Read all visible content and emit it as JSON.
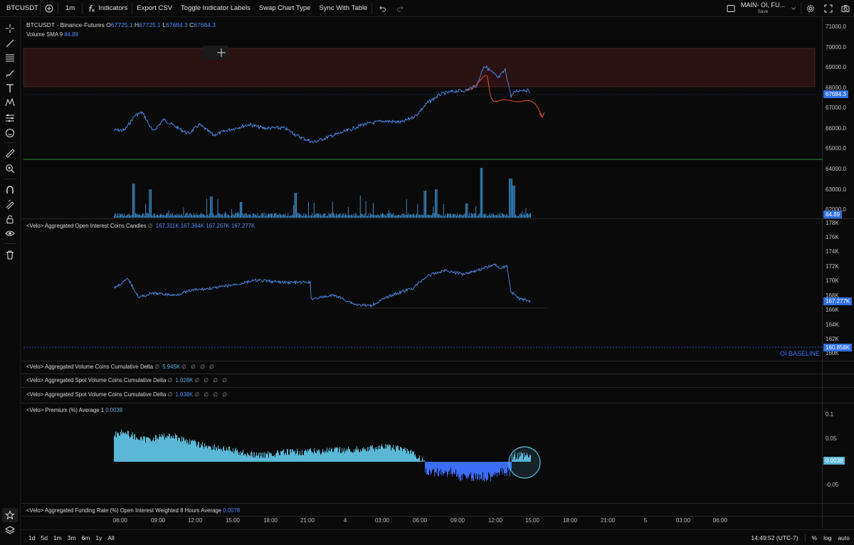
{
  "toolbar": {
    "symbol": "BTCUSDT",
    "interval": "1m",
    "indicators_label": "Indicators",
    "export_csv_label": "Export CSV",
    "toggle_labels_label": "Toggle Indicator Labels",
    "swap_chart_label": "Swap Chart Type",
    "sync_table_label": "Sync With Table",
    "layout_name": "MAIN- OI, FU...",
    "layout_save": "Save"
  },
  "main_legend": {
    "title": "BTCUSDT · Binance-Futures",
    "o_label": "O",
    "o": "67725.1",
    "h_label": "H",
    "h": "67725.1",
    "l_label": "L",
    "l": "67684.3",
    "c_label": "C",
    "c": "67684.3",
    "volume_label": "Volume SMA 9",
    "volume_value": "84.89"
  },
  "oi_legend": {
    "label": "<Velo> Aggregated Open Interest Coins Candles",
    "null_mark": "∅",
    "values": [
      "167.311K",
      "167.364K",
      "167.267K",
      "167.277K"
    ]
  },
  "delta_legends": [
    {
      "label": "<Velo> Aggregated Volume Coins Cumulative Delta",
      "null_mark": "∅",
      "value": "5.945K",
      "trailing": "∅ ∅ ∅ ∅"
    },
    {
      "label": "<Velo> Aggregated Spot Volume Coins Cumulative Delta",
      "null_mark": "∅",
      "value": "1.028K",
      "trailing": "∅ ∅ ∅ ∅"
    },
    {
      "label": "<Velo> Aggregated Spot Volume Coins Cumulative Delta",
      "null_mark": "∅",
      "value": "1.038K",
      "trailing": "∅ ∅ ∅ ∅"
    }
  ],
  "premium_legend": {
    "label": "<Velo> Premium (%) Average 1",
    "value": "0.0038"
  },
  "funding_legend": {
    "label": "<Velo> Aggregated Funding Rate (%) Open Interest Weighted 8 Hours Average",
    "value": "0.0078"
  },
  "oi_baseline_label": "OI BASELINE",
  "price_axis": {
    "price_ticks": [
      "71000.0",
      "70000.0",
      "69000.0",
      "68000.0",
      "67000.0",
      "66000.0",
      "65000.0",
      "64000.0",
      "63000.0",
      "62000.0"
    ],
    "price_tag": "67684.3",
    "volume_tag": "84.89",
    "oi_ticks": [
      "178K",
      "176K",
      "174K",
      "172K",
      "170K",
      "168K",
      "166K",
      "164K",
      "162K",
      "160K"
    ],
    "oi_tag": "167.277K",
    "oi_baseline_tag": "160.858K",
    "premium_ticks": [
      "0.1",
      "0.05",
      "-0.05"
    ],
    "premium_tag": "0.0038"
  },
  "time_axis": [
    "06:00",
    "09:00",
    "12:00",
    "15:00",
    "18:00",
    "21:00",
    "4",
    "03:00",
    "06:00",
    "09:00",
    "12:00",
    "15:00",
    "18:00",
    "21:00",
    "5",
    "03:00",
    "06:00"
  ],
  "bottom": {
    "ranges": [
      "1d",
      "5d",
      "1m",
      "3m",
      "6m",
      "1y",
      "All"
    ],
    "clock": "14:49:52 (UTC-7)",
    "percent": "%",
    "log": "log",
    "auto": "auto"
  },
  "colors": {
    "price_line": "#4c8ff0",
    "oi_line": "#4c8ff0",
    "zone_fill": "#2a1212",
    "premium_pos": "#5ab8d6",
    "premium_neg": "#3a6cf5",
    "volume_bar": "#3d93d4",
    "red_projection": "#e04436",
    "green_line": "#2e8b3e"
  }
}
